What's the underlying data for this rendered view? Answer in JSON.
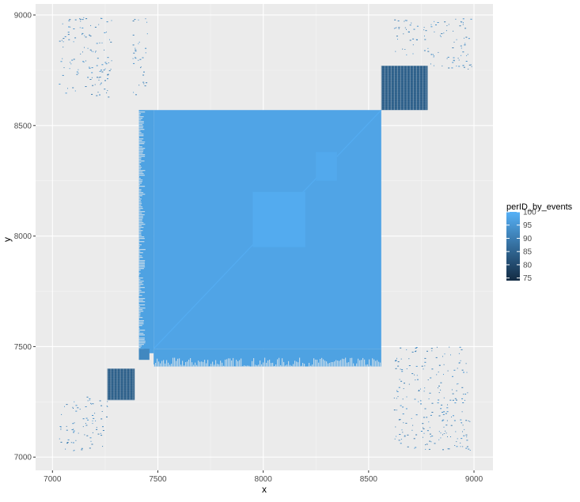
{
  "chart_data": {
    "type": "heatmap",
    "title": "",
    "xlabel": "x",
    "ylabel": "y",
    "xlim": [
      6920,
      9090
    ],
    "ylim": [
      6940,
      9050
    ],
    "xticks": [
      7000,
      7500,
      8000,
      8500,
      9000
    ],
    "yticks": [
      7000,
      7500,
      8000,
      8500,
      9000
    ],
    "grid": true,
    "legend": {
      "title": "perID_by_events",
      "placement": "right",
      "breaks": [
        100,
        95,
        90,
        85,
        80,
        75
      ],
      "range": [
        74,
        100
      ],
      "color_low": "#132B43",
      "color_high": "#56B1F7"
    },
    "regions": [
      {
        "name": "main-block",
        "x": [
          7480,
          8560
        ],
        "y": [
          7490,
          8570
        ],
        "value": 97.5
      },
      {
        "name": "inner-square",
        "x": [
          7950,
          8200
        ],
        "y": [
          7950,
          8200
        ],
        "value": 98.8
      },
      {
        "name": "small-square",
        "x": [
          8250,
          8350
        ],
        "y": [
          8250,
          8380
        ],
        "value": 98.5
      },
      {
        "name": "left-dense-band",
        "x": [
          7410,
          7480
        ],
        "y": [
          7470,
          8570
        ],
        "value": 97
      },
      {
        "name": "bottom-dense-band",
        "x": [
          7480,
          8560
        ],
        "y": [
          7410,
          7490
        ],
        "value": 97
      },
      {
        "name": "lower-left-block",
        "x": [
          7260,
          7390
        ],
        "y": [
          7260,
          7400
        ],
        "value": 84
      },
      {
        "name": "upper-right-block",
        "x": [
          8560,
          8780
        ],
        "y": [
          8570,
          8770
        ],
        "value": 84
      },
      {
        "name": "lower-left-corner-small",
        "x": [
          7410,
          7460
        ],
        "y": [
          7440,
          7490
        ],
        "value": 92
      },
      {
        "name": "upper-left-scatter",
        "x": [
          7030,
          7280
        ],
        "y": [
          8630,
          8990
        ],
        "value": 95
      },
      {
        "name": "upper-left-scatter-b",
        "x": [
          7380,
          7450
        ],
        "y": [
          8630,
          8990
        ],
        "value": 95
      },
      {
        "name": "lower-right-scatter",
        "x": [
          8620,
          8980
        ],
        "y": [
          7030,
          7500
        ],
        "value": 95
      },
      {
        "name": "upper-right-scatter",
        "x": [
          8760,
          8990
        ],
        "y": [
          8750,
          8990
        ],
        "value": 95
      },
      {
        "name": "lower-left-scatter",
        "x": [
          7030,
          7260
        ],
        "y": [
          7030,
          7280
        ],
        "value": 95
      },
      {
        "name": "upper-right-edge-scatter",
        "x": [
          8620,
          8760
        ],
        "y": [
          8820,
          8990
        ],
        "value": 95
      }
    ]
  }
}
